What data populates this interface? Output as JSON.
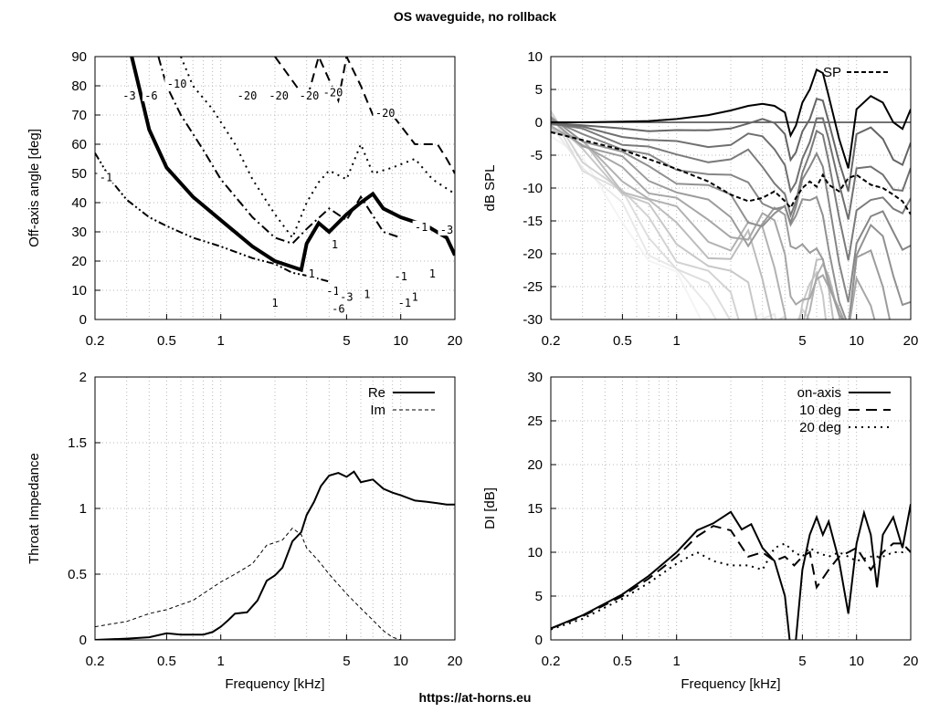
{
  "title": "OS waveguide, no rollback",
  "footer": "https://at-horns.eu",
  "chart_data": [
    {
      "type": "contour",
      "xlabel": "",
      "ylabel": "Off-axis angle [deg]",
      "xscale": "log",
      "xlim": [
        0.2,
        20
      ],
      "ylim": [
        0,
        90
      ],
      "xticks": [
        0.2,
        0.5,
        1,
        5,
        10,
        20
      ],
      "xtick_labels": [
        "0.2",
        "0.5",
        "1",
        "5",
        "10",
        "20"
      ],
      "yticks": [
        0,
        10,
        20,
        30,
        40,
        50,
        60,
        70,
        80,
        90
      ],
      "ytick_labels": [
        "0",
        "10",
        "20",
        "30",
        "40",
        "50",
        "60",
        "70",
        "80",
        "90"
      ],
      "grid": true,
      "contours": [
        {
          "level": "-1",
          "style": "dash-dot-dot",
          "points": [
            [
              0.2,
              57
            ],
            [
              0.25,
              47
            ],
            [
              0.3,
              41
            ],
            [
              0.4,
              35
            ],
            [
              0.5,
              32
            ],
            [
              0.7,
              28
            ],
            [
              1,
              25
            ],
            [
              1.5,
              21
            ],
            [
              2,
              19
            ],
            [
              2.5,
              16
            ],
            [
              3,
              15
            ],
            [
              4,
              13
            ]
          ]
        },
        {
          "level": "-3",
          "style": "thick",
          "points": [
            [
              0.32,
              90
            ],
            [
              0.35,
              80
            ],
            [
              0.4,
              65
            ],
            [
              0.5,
              52
            ],
            [
              0.7,
              42
            ],
            [
              1,
              34
            ],
            [
              1.5,
              25
            ],
            [
              2,
              20
            ],
            [
              2.5,
              18
            ],
            [
              2.8,
              17
            ],
            [
              3,
              26
            ],
            [
              3.5,
              33
            ],
            [
              4,
              30
            ],
            [
              5,
              36
            ],
            [
              6,
              40
            ],
            [
              7,
              43
            ],
            [
              8,
              38
            ],
            [
              10,
              35
            ],
            [
              14,
              32
            ],
            [
              18,
              28
            ],
            [
              20,
              22
            ]
          ]
        },
        {
          "level": "-6",
          "style": "dash-dot",
          "points": [
            [
              0.45,
              90
            ],
            [
              0.5,
              80
            ],
            [
              0.6,
              70
            ],
            [
              0.8,
              58
            ],
            [
              1,
              48
            ],
            [
              1.5,
              35
            ],
            [
              2,
              28
            ],
            [
              2.5,
              26
            ],
            [
              3,
              31
            ],
            [
              4,
              38
            ],
            [
              5,
              34
            ],
            [
              6,
              42
            ],
            [
              8,
              30
            ],
            [
              10,
              28
            ]
          ]
        },
        {
          "level": "-10",
          "style": "dotted",
          "points": [
            [
              0.6,
              90
            ],
            [
              0.7,
              80
            ],
            [
              0.9,
              72
            ],
            [
              1.2,
              60
            ],
            [
              1.5,
              48
            ],
            [
              2,
              36
            ],
            [
              2.5,
              28
            ],
            [
              3,
              40
            ],
            [
              3.5,
              47
            ],
            [
              4,
              51
            ],
            [
              5,
              48
            ],
            [
              6,
              60
            ],
            [
              7,
              50
            ],
            [
              9,
              52
            ],
            [
              12,
              55
            ],
            [
              15,
              48
            ],
            [
              20,
              43
            ]
          ]
        },
        {
          "level": "-20",
          "style": "dashed",
          "points": [
            [
              2,
              90
            ],
            [
              3,
              75
            ],
            [
              3.5,
              90
            ],
            [
              4.5,
              75
            ],
            [
              5,
              90
            ],
            [
              6,
              80
            ],
            [
              7,
              70
            ],
            [
              9,
              70
            ],
            [
              12,
              60
            ],
            [
              14,
              60
            ],
            [
              16,
              60
            ],
            [
              18,
              55
            ],
            [
              20,
              50
            ]
          ]
        }
      ],
      "labels": [
        {
          "text": "-1",
          "x": 0.23,
          "y": 48
        },
        {
          "text": "-3",
          "x": 0.31,
          "y": 76
        },
        {
          "text": "-6",
          "x": 0.41,
          "y": 76
        },
        {
          "text": "-10",
          "x": 0.57,
          "y": 80
        },
        {
          "text": "-20",
          "x": 1.4,
          "y": 76
        },
        {
          "text": "-20",
          "x": 2.1,
          "y": 76
        },
        {
          "text": "-20",
          "x": 3.1,
          "y": 76
        },
        {
          "text": "-20",
          "x": 4.2,
          "y": 77
        },
        {
          "text": "-20",
          "x": 8.2,
          "y": 70
        },
        {
          "text": "-1",
          "x": 13,
          "y": 31
        },
        {
          "text": "-3",
          "x": 18,
          "y": 30
        },
        {
          "text": "1",
          "x": 4.3,
          "y": 25
        },
        {
          "text": "1",
          "x": 3.2,
          "y": 15
        },
        {
          "text": "-1",
          "x": 4.2,
          "y": 9
        },
        {
          "text": "-3",
          "x": 5,
          "y": 7
        },
        {
          "text": "1",
          "x": 6.5,
          "y": 8
        },
        {
          "text": "-1",
          "x": 10,
          "y": 14
        },
        {
          "text": "1",
          "x": 15,
          "y": 15
        },
        {
          "text": "1",
          "x": 12,
          "y": 7
        },
        {
          "text": "-1",
          "x": 10.5,
          "y": 5
        },
        {
          "text": "1",
          "x": 2,
          "y": 5
        },
        {
          "text": "-6",
          "x": 4.5,
          "y": 3
        }
      ]
    },
    {
      "type": "line",
      "xlabel": "",
      "ylabel": "dB SPL",
      "xscale": "log",
      "xlim": [
        0.2,
        20
      ],
      "ylim": [
        -30,
        10
      ],
      "xticks": [
        0.2,
        0.5,
        1,
        5,
        10,
        20
      ],
      "xtick_labels": [
        "0.2",
        "0.5",
        "1",
        "5",
        "10",
        "20"
      ],
      "yticks": [
        -30,
        -25,
        -20,
        -15,
        -10,
        -5,
        0,
        5,
        10
      ],
      "ytick_labels": [
        "-30",
        "-25",
        "-20",
        "-15",
        "-10",
        "-5",
        "0",
        "5",
        "10"
      ],
      "grid": true,
      "legend": {
        "position": "top-right",
        "entries": [
          "SP"
        ]
      },
      "x": [
        0.2,
        0.3,
        0.5,
        0.7,
        1,
        1.5,
        2,
        2.5,
        3,
        3.5,
        4,
        4.3,
        4.6,
        5,
        5.5,
        6,
        6.5,
        7,
        8,
        9,
        10,
        12,
        14,
        16,
        18,
        20
      ],
      "on_axis": [
        0,
        0,
        0.1,
        0.2,
        0.5,
        1.1,
        1.8,
        2.5,
        2.8,
        2.5,
        1.5,
        -2,
        -0.5,
        3,
        5,
        8,
        7.5,
        4,
        -2.5,
        -7,
        2,
        4,
        3,
        0,
        -1,
        2
      ],
      "sp": [
        -1.5,
        -2.7,
        -4.2,
        -5.6,
        -7.1,
        -9,
        -11,
        -12,
        -11.5,
        -10.5,
        -12,
        -13,
        -11.5,
        -10,
        -9,
        -9.8,
        -8,
        -9.5,
        -10.5,
        -8.5,
        -8,
        -9.5,
        -10,
        -11,
        -12,
        -14
      ],
      "off_axis_series": 14
    },
    {
      "type": "line",
      "xlabel": "Frequency [kHz]",
      "ylabel": "Throat Impedance",
      "xscale": "log",
      "xlim": [
        0.2,
        20
      ],
      "ylim": [
        0,
        2
      ],
      "xticks": [
        0.2,
        0.5,
        1,
        5,
        10,
        20
      ],
      "xtick_labels": [
        "0.2",
        "0.5",
        "1",
        "5",
        "10",
        "20"
      ],
      "yticks": [
        0,
        0.5,
        1,
        1.5,
        2
      ],
      "ytick_labels": [
        "0",
        "0.5",
        "1",
        "1.5",
        "2"
      ],
      "grid": true,
      "legend": {
        "position": "top-right",
        "entries": [
          "Re",
          "Im"
        ]
      },
      "series": [
        {
          "name": "Re",
          "style": "solid",
          "x": [
            0.2,
            0.3,
            0.4,
            0.5,
            0.6,
            0.7,
            0.8,
            0.9,
            1,
            1.1,
            1.2,
            1.4,
            1.6,
            1.8,
            2,
            2.2,
            2.5,
            2.8,
            3,
            3.3,
            3.6,
            4,
            4.5,
            5,
            5.5,
            6,
            7,
            8,
            9,
            10,
            12,
            14,
            16,
            18,
            20
          ],
          "y": [
            0,
            0.01,
            0.02,
            0.05,
            0.04,
            0.04,
            0.04,
            0.06,
            0.1,
            0.15,
            0.2,
            0.21,
            0.3,
            0.45,
            0.49,
            0.55,
            0.75,
            0.82,
            0.95,
            1.05,
            1.17,
            1.25,
            1.27,
            1.24,
            1.28,
            1.2,
            1.22,
            1.15,
            1.12,
            1.1,
            1.06,
            1.05,
            1.04,
            1.03,
            1.03
          ]
        },
        {
          "name": "Im",
          "style": "dashed",
          "x": [
            0.2,
            0.3,
            0.4,
            0.5,
            0.7,
            1,
            1.2,
            1.5,
            1.8,
            2,
            2.2,
            2.5,
            2.8,
            3,
            3.5,
            4,
            5,
            6,
            7,
            8,
            9,
            10,
            12,
            14,
            16,
            18,
            20
          ],
          "y": [
            0.1,
            0.14,
            0.2,
            0.23,
            0.3,
            0.44,
            0.5,
            0.58,
            0.72,
            0.74,
            0.76,
            0.85,
            0.8,
            0.7,
            0.6,
            0.5,
            0.35,
            0.24,
            0.15,
            0.07,
            0.02,
            0,
            0,
            0,
            0,
            0,
            0
          ]
        }
      ]
    },
    {
      "type": "line",
      "xlabel": "Frequency [kHz]",
      "ylabel": "DI [dB]",
      "xscale": "log",
      "xlim": [
        0.2,
        20
      ],
      "ylim": [
        0,
        30
      ],
      "xticks": [
        0.2,
        0.5,
        1,
        5,
        10,
        20
      ],
      "xtick_labels": [
        "0.2",
        "0.5",
        "1",
        "5",
        "10",
        "20"
      ],
      "yticks": [
        0,
        5,
        10,
        15,
        20,
        25,
        30
      ],
      "ytick_labels": [
        "0",
        "5",
        "10",
        "15",
        "20",
        "25",
        "30"
      ],
      "grid": true,
      "legend": {
        "position": "top-right",
        "entries": [
          "on-axis",
          "10 deg",
          "20 deg"
        ]
      },
      "series": [
        {
          "name": "on-axis",
          "style": "solid",
          "x": [
            0.2,
            0.3,
            0.5,
            0.7,
            1,
            1.3,
            1.6,
            2,
            2.3,
            2.6,
            3,
            3.5,
            4,
            4.3,
            4.6,
            5,
            5.5,
            6,
            6.5,
            7,
            8,
            9,
            10,
            11,
            12,
            13,
            14,
            16,
            18,
            20
          ],
          "y": [
            1.3,
            2.8,
            5.2,
            7.3,
            10,
            12.5,
            13.3,
            14.6,
            12.6,
            13.2,
            10.5,
            9,
            5,
            -1,
            0,
            8,
            12,
            14,
            12,
            13.5,
            9,
            3,
            11,
            14.5,
            12,
            6,
            12,
            14,
            10.5,
            15.5
          ]
        },
        {
          "name": "10 deg",
          "style": "dashed",
          "x": [
            0.2,
            0.3,
            0.5,
            0.7,
            1,
            1.3,
            1.6,
            2,
            2.5,
            3,
            3.5,
            4,
            4.5,
            5,
            5.5,
            6,
            7,
            8,
            9,
            10,
            12,
            14,
            16,
            18,
            20
          ],
          "y": [
            1.3,
            2.7,
            5,
            7,
            9.5,
            11.8,
            13,
            12.5,
            9.5,
            10,
            9,
            9.5,
            8.5,
            9.5,
            10,
            6,
            8,
            9.5,
            10,
            10.5,
            8,
            10,
            11,
            11,
            10
          ]
        },
        {
          "name": "20 deg",
          "style": "dotted",
          "x": [
            0.2,
            0.3,
            0.5,
            0.7,
            1,
            1.3,
            1.6,
            2,
            2.5,
            3,
            3.5,
            4,
            4.5,
            5,
            5.5,
            6,
            7,
            8,
            9,
            10,
            12,
            14,
            16,
            18,
            20
          ],
          "y": [
            1.2,
            2.4,
            4.7,
            6.5,
            8.7,
            10,
            9,
            8.5,
            8.5,
            8,
            10.5,
            11,
            10,
            9.5,
            10.5,
            10,
            9.5,
            10,
            9.5,
            9,
            9.5,
            9.5,
            10,
            10,
            10.5
          ]
        }
      ]
    }
  ]
}
